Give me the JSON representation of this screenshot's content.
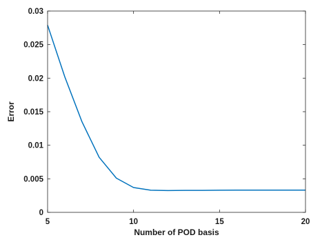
{
  "chart_data": {
    "type": "line",
    "title": "",
    "xlabel": "Number of POD basis",
    "ylabel": "Error",
    "xlim": [
      5,
      20
    ],
    "ylim": [
      0,
      0.03
    ],
    "xticks": [
      5,
      10,
      15,
      20
    ],
    "xtick_labels": [
      "5",
      "10",
      "15",
      "20"
    ],
    "yticks": [
      0,
      0.005,
      0.01,
      0.015,
      0.02,
      0.025,
      0.03
    ],
    "ytick_labels": [
      "0",
      "0.005",
      "0.01",
      "0.015",
      "0.02",
      "0.025",
      "0.03"
    ],
    "grid": false,
    "series": [
      {
        "color": "#0072BD",
        "x": [
          5,
          6,
          7,
          8,
          9,
          10,
          11,
          12,
          13,
          14,
          15,
          16,
          17,
          18,
          19,
          20
        ],
        "y": [
          0.0279,
          0.0202,
          0.0135,
          0.0082,
          0.0051,
          0.0037,
          0.0033,
          0.00325,
          0.00327,
          0.00328,
          0.0033,
          0.00331,
          0.00331,
          0.00331,
          0.00331,
          0.00331
        ]
      }
    ]
  }
}
